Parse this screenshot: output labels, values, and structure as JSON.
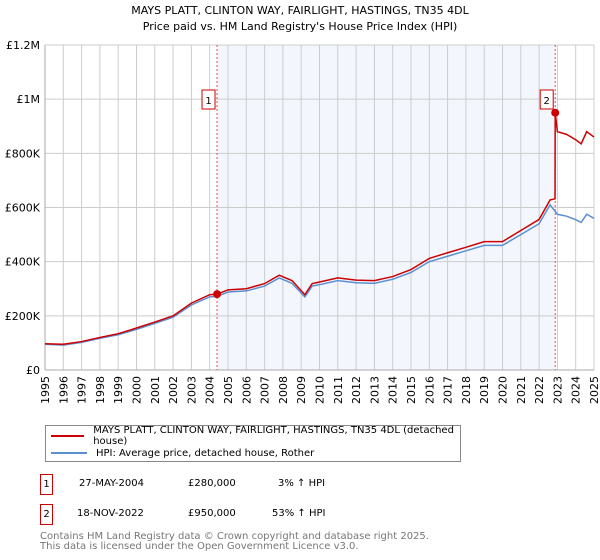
{
  "chart_data": {
    "type": "line",
    "title": "MAYS PLATT, CLINTON WAY, FAIRLIGHT, HASTINGS, TN35 4DL",
    "subtitle": "Price paid vs. HM Land Registry's House Price Index (HPI)",
    "xlim": [
      1995,
      2025
    ],
    "ylim": [
      0,
      1200000
    ],
    "x_ticks": [
      "1995",
      "1996",
      "1997",
      "1998",
      "1999",
      "2000",
      "2001",
      "2002",
      "2003",
      "2004",
      "2005",
      "2006",
      "2007",
      "2008",
      "2009",
      "2010",
      "2011",
      "2012",
      "2013",
      "2014",
      "2015",
      "2016",
      "2017",
      "2018",
      "2019",
      "2020",
      "2021",
      "2022",
      "2023",
      "2024",
      "2025"
    ],
    "y_ticks": [
      {
        "v": 0,
        "label": "£0"
      },
      {
        "v": 200000,
        "label": "£200K"
      },
      {
        "v": 400000,
        "label": "£400K"
      },
      {
        "v": 600000,
        "label": "£600K"
      },
      {
        "v": 800000,
        "label": "£800K"
      },
      {
        "v": 1000000,
        "label": "£1M"
      },
      {
        "v": 1200000,
        "label": "£1.2M"
      }
    ],
    "grid": true,
    "shaded_range": [
      2004.4,
      2022.88
    ],
    "series": [
      {
        "name": "MAYS PLATT, CLINTON WAY, FAIRLIGHT, HASTINGS, TN35 4DL (detached house)",
        "color": "#cc0000",
        "x": [
          1995,
          1996,
          1997,
          1998,
          1999,
          2000,
          2001,
          2002,
          2003,
          2004,
          2004.4,
          2005,
          2006,
          2007,
          2007.8,
          2008.5,
          2009.2,
          2009.6,
          2010,
          2011,
          2012,
          2013,
          2014,
          2015,
          2016,
          2017,
          2018,
          2019,
          2020,
          2021,
          2022,
          2022.6,
          2022.87,
          2022.88,
          2023,
          2023.5,
          2024,
          2024.3,
          2024.6,
          2025
        ],
        "y": [
          97000,
          95000,
          105000,
          120000,
          134000,
          155000,
          177000,
          200000,
          247000,
          278000,
          280000,
          296000,
          300000,
          319000,
          350000,
          330000,
          278000,
          319000,
          325000,
          340000,
          332000,
          330000,
          345000,
          371000,
          412000,
          433000,
          453000,
          474000,
          474000,
          515000,
          556000,
          628000,
          632000,
          950000,
          880000,
          870000,
          850000,
          835000,
          880000,
          860000
        ]
      },
      {
        "name": "HPI: Average price, detached house, Rother",
        "color": "#5b8fd0",
        "x": [
          1995,
          1996,
          1997,
          1998,
          1999,
          2000,
          2001,
          2002,
          2003,
          2004,
          2004.4,
          2005,
          2006,
          2007,
          2007.8,
          2008.5,
          2009.2,
          2009.6,
          2010,
          2011,
          2012,
          2013,
          2014,
          2015,
          2016,
          2017,
          2018,
          2019,
          2020,
          2021,
          2022,
          2022.6,
          2023,
          2023.5,
          2024,
          2024.3,
          2024.6,
          2025
        ],
        "y": [
          95000,
          92000,
          102000,
          117000,
          130000,
          150000,
          172000,
          195000,
          240000,
          270000,
          272000,
          288000,
          292000,
          310000,
          340000,
          320000,
          270000,
          310000,
          315000,
          330000,
          322000,
          320000,
          335000,
          360000,
          400000,
          420000,
          440000,
          460000,
          460000,
          500000,
          540000,
          610000,
          575000,
          568000,
          555000,
          545000,
          575000,
          560000
        ]
      }
    ],
    "annotations": [
      {
        "id": "1",
        "x": 2004.4,
        "y": 280000
      },
      {
        "id": "2",
        "x": 2022.88,
        "y": 950000
      }
    ]
  },
  "legend": {
    "items": [
      {
        "label": "MAYS PLATT, CLINTON WAY, FAIRLIGHT, HASTINGS, TN35 4DL (detached house)",
        "color": "#cc0000"
      },
      {
        "label": "HPI: Average price, detached house, Rother",
        "color": "#5b8fd0"
      }
    ]
  },
  "transactions": [
    {
      "id": "1",
      "date": "27-MAY-2004",
      "price": "£280,000",
      "hpi": "3% ↑ HPI"
    },
    {
      "id": "2",
      "date": "18-NOV-2022",
      "price": "£950,000",
      "hpi": "53% ↑ HPI"
    }
  ],
  "footer": {
    "line1": "Contains HM Land Registry data © Crown copyright and database right 2025.",
    "line2": "This data is licensed under the Open Government Licence v3.0."
  }
}
